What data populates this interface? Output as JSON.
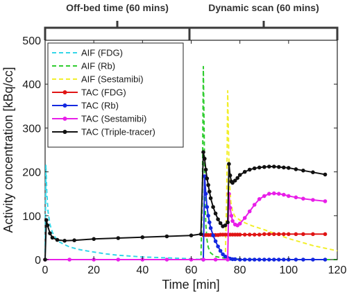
{
  "chart_data": {
    "type": "line",
    "xlabel": "Time [min]",
    "ylabel": "Activity concentration [kBq/cc]",
    "xlim": [
      0,
      120
    ],
    "ylim": [
      0,
      500
    ],
    "xticks": [
      0,
      20,
      40,
      60,
      80,
      100,
      120
    ],
    "yticks": [
      0,
      100,
      200,
      300,
      400,
      500
    ],
    "xtick_labels": [
      "0",
      "20",
      "40",
      "60",
      "80",
      "100",
      "120"
    ],
    "ytick_labels": [
      "0",
      "100",
      "200",
      "300",
      "400",
      "500"
    ],
    "grid": false,
    "legend_position": "top-left",
    "phases": [
      {
        "label": "Off-bed time (60 mins)",
        "x_range": [
          0,
          60
        ]
      },
      {
        "label": "Dynamic scan (60 mins)",
        "x_range": [
          60,
          120
        ]
      }
    ],
    "series": [
      {
        "name": "AIF (FDG)",
        "color": "#33d6e8",
        "dash": "dashed",
        "markers": false,
        "x": [
          0,
          0.3,
          0.7,
          1.2,
          2,
          3,
          4,
          5,
          6,
          8,
          10,
          14,
          18,
          25,
          30,
          40,
          50,
          60,
          62,
          65
        ],
        "y": [
          0,
          215,
          150,
          110,
          80,
          62,
          52,
          45,
          40,
          34,
          29,
          23,
          19,
          13,
          10,
          6,
          4,
          2,
          1,
          0
        ]
      },
      {
        "name": "AIF (Rb)",
        "color": "#2ecc2e",
        "dash": "dashed",
        "markers": false,
        "x": [
          60,
          64,
          64.6,
          65.0,
          65.3,
          65.6,
          66,
          66.5,
          67,
          68,
          70,
          75,
          80,
          90,
          100,
          120
        ],
        "y": [
          0,
          0,
          150,
          440,
          300,
          150,
          80,
          45,
          28,
          15,
          7,
          2,
          1,
          0,
          0,
          0
        ]
      },
      {
        "name": "AIF (Sestamibi)",
        "color": "#f2ef2a",
        "dash": "dashed",
        "markers": false,
        "x": [
          60,
          74,
          74.6,
          75.0,
          75.4,
          75.8,
          76.3,
          77,
          78,
          80,
          82,
          85,
          90,
          95,
          100,
          105,
          110,
          115,
          120
        ],
        "y": [
          0,
          0,
          150,
          385,
          250,
          170,
          130,
          110,
          98,
          90,
          84,
          77,
          68,
          58,
          48,
          40,
          32,
          26,
          20
        ]
      },
      {
        "name": "TAC (FDG)",
        "color": "#e01414",
        "dash": "solid",
        "markers": true,
        "x": [
          65,
          66,
          67,
          68,
          69,
          70,
          71,
          72,
          73,
          74,
          75,
          76,
          77,
          78,
          79,
          80,
          82,
          84,
          86,
          88,
          90,
          92,
          94,
          96,
          98,
          100,
          103,
          106,
          110,
          115
        ],
        "y": [
          56,
          56,
          56,
          56,
          56,
          56,
          56,
          57,
          57,
          57,
          57,
          57,
          57,
          57,
          57,
          57,
          57,
          57,
          57,
          57,
          58,
          58,
          58,
          58,
          58,
          58,
          58,
          58,
          58,
          58
        ]
      },
      {
        "name": "TAC (Rb)",
        "color": "#1428e0",
        "dash": "solid",
        "markers": true,
        "x": [
          65,
          65.5,
          66,
          66.5,
          67,
          67.5,
          68,
          69,
          70,
          71,
          72,
          73,
          74,
          75,
          76,
          77,
          78,
          80,
          82,
          84,
          86,
          88,
          90,
          92,
          94,
          96,
          98,
          100,
          103,
          106,
          110,
          115
        ],
        "y": [
          0,
          190,
          150,
          120,
          100,
          85,
          72,
          55,
          42,
          30,
          20,
          12,
          7,
          4,
          2,
          1,
          1,
          0,
          0,
          0,
          0,
          0,
          0,
          0,
          0,
          0,
          0,
          0,
          0,
          0,
          0,
          0
        ]
      },
      {
        "name": "TAC (Sestamibi)",
        "color": "#e81ee8",
        "dash": "solid",
        "markers": true,
        "x": [
          0,
          10,
          20,
          30,
          40,
          50,
          60,
          65,
          70,
          75,
          75.5,
          76,
          76.5,
          77,
          78,
          79,
          80,
          82,
          84,
          86,
          88,
          90,
          92,
          94,
          96,
          98,
          100,
          103,
          106,
          110,
          115
        ],
        "y": [
          0,
          0,
          0,
          0,
          0,
          0,
          0,
          0,
          0,
          0,
          150,
          118,
          100,
          88,
          80,
          78,
          82,
          95,
          110,
          125,
          138,
          145,
          150,
          151,
          150,
          148,
          145,
          142,
          139,
          136,
          133
        ]
      },
      {
        "name": "TAC (Triple-tracer)",
        "color": "#111111",
        "dash": "solid",
        "markers": true,
        "x": [
          0,
          0.5,
          1,
          2,
          3,
          5,
          8,
          12,
          20,
          30,
          40,
          50,
          60,
          64,
          65,
          65.5,
          66,
          66.5,
          67,
          67.5,
          68,
          69,
          70,
          71,
          72,
          73,
          74,
          75,
          75.5,
          76,
          76.5,
          77,
          78,
          79,
          80,
          82,
          84,
          86,
          88,
          90,
          92,
          94,
          96,
          98,
          100,
          103,
          106,
          110,
          115
        ],
        "y": [
          0,
          90,
          78,
          60,
          50,
          45,
          43,
          44,
          47,
          49,
          51,
          53,
          55,
          58,
          245,
          230,
          205,
          185,
          170,
          155,
          140,
          120,
          105,
          92,
          83,
          76,
          78,
          85,
          218,
          192,
          178,
          175,
          180,
          186,
          193,
          200,
          205,
          208,
          210,
          211,
          212,
          212,
          211,
          210,
          209,
          206,
          203,
          199,
          194
        ]
      }
    ]
  }
}
